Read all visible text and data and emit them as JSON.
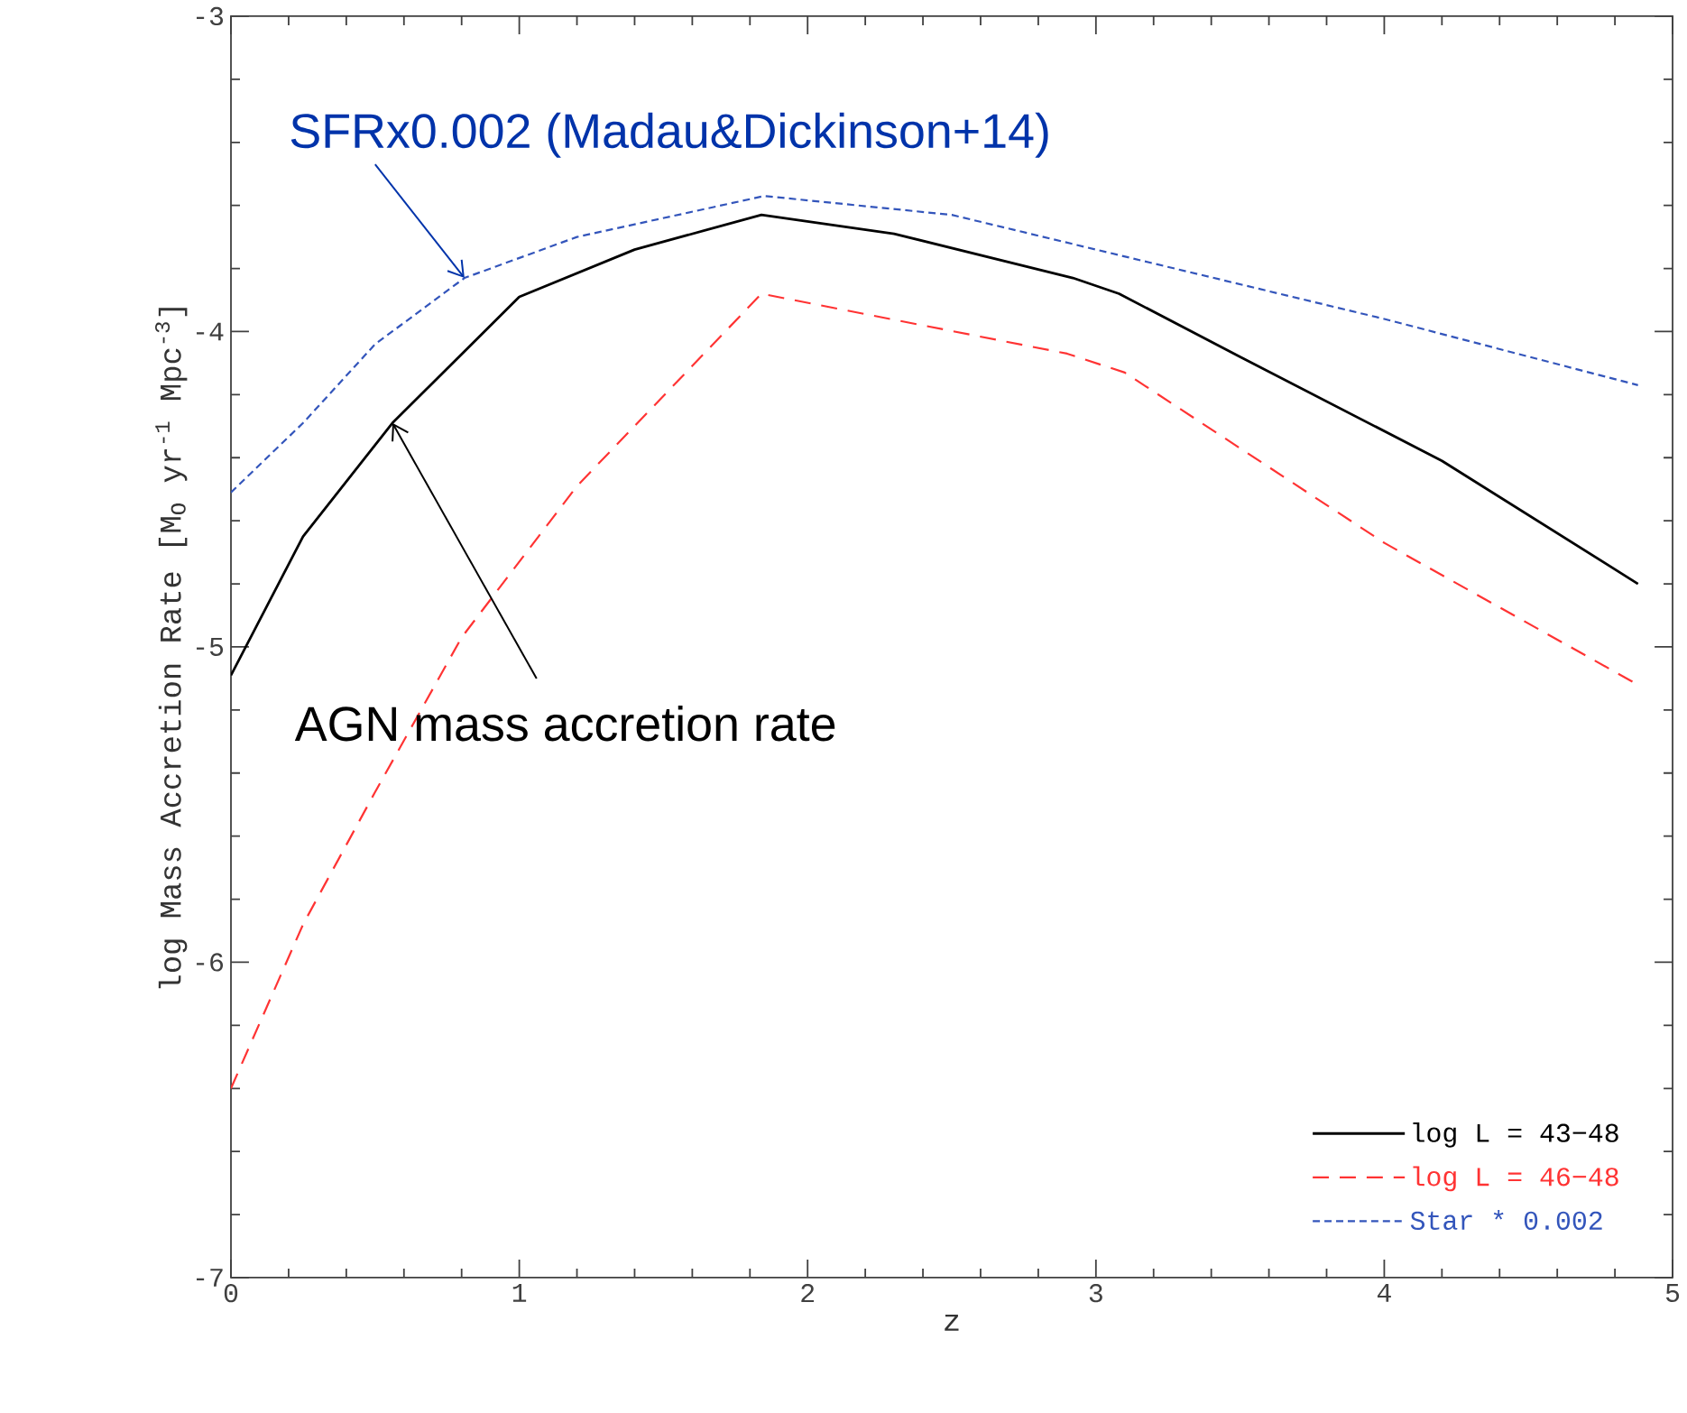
{
  "chart_data": {
    "type": "line",
    "xlabel": "z",
    "ylabel": "log Mass Accretion Rate [M$_{O}$ yr$^{-1}$ Mpc$^{-3}$]",
    "xlim": [
      0,
      5
    ],
    "ylim": [
      -7,
      -3
    ],
    "xticks": [
      0,
      1,
      2,
      3,
      4,
      5
    ],
    "yticks": [
      -7,
      -6,
      -5,
      -4,
      -3
    ],
    "legend": "bottom right",
    "grid": false,
    "marker": "none",
    "series": [
      {
        "name": "log L = 43−48",
        "color": "#000000",
        "line_style": "solid",
        "x": [
          0,
          0.25,
          0.56,
          1,
          1.4,
          1.84,
          2.3,
          2.92,
          3.08,
          3.5,
          4.2,
          4.88
        ],
        "values": [
          -5.09,
          -4.65,
          -4.29,
          -3.89,
          -3.74,
          -3.63,
          -3.69,
          -3.83,
          -3.88,
          -4.08,
          -4.41,
          -4.8
        ]
      },
      {
        "name": "log L = 46−48",
        "color": "#ff3333",
        "line_style": "dashed",
        "x": [
          0,
          0.25,
          0.5,
          0.8,
          1.2,
          1.84,
          2.9,
          3.1,
          4,
          4.88
        ],
        "values": [
          -6.4,
          -5.88,
          -5.46,
          -4.97,
          -4.49,
          -3.88,
          -4.07,
          -4.13,
          -4.67,
          -5.12
        ]
      },
      {
        "name": "Star * 0.002",
        "color": "#3355bb",
        "line_style": "dotted",
        "x": [
          0,
          0.25,
          0.5,
          0.81,
          1.2,
          1.85,
          2.5,
          3,
          4,
          4.88
        ],
        "values": [
          -4.51,
          -4.29,
          -4.04,
          -3.83,
          -3.7,
          -3.57,
          -3.63,
          -3.74,
          -3.96,
          -4.17
        ]
      }
    ],
    "annotations": [
      {
        "text": "SFRx0.002  (Madau&Dickinson+14)",
        "x": 0.81,
        "y": -3.83
      },
      {
        "text": "AGN mass accretion rate",
        "x": 0.56,
        "y": -4.29
      }
    ]
  }
}
